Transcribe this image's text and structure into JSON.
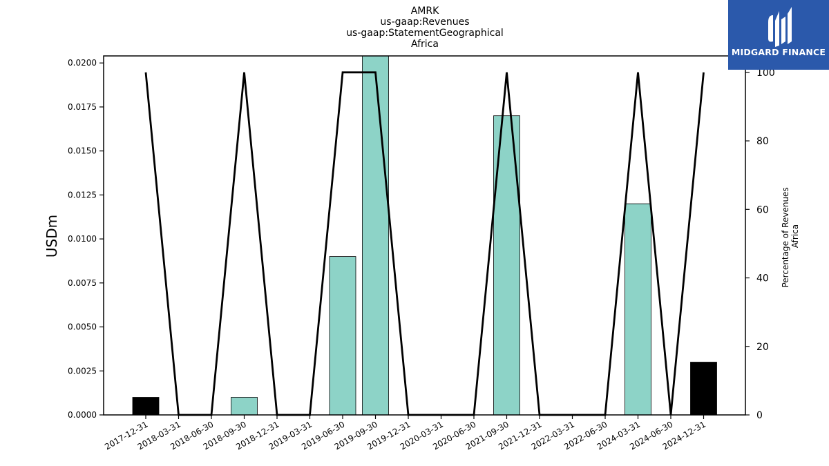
{
  "logo": {
    "text": "MIDGARD FINANCE",
    "icon": "midgard-logo-icon",
    "bg_color": "#2b59ab"
  },
  "chart_data": {
    "type": "bar",
    "title_lines": [
      "AMRK",
      "us-gaap:Revenues",
      "us-gaap:StatementGeographical",
      "Africa"
    ],
    "categories": [
      "2017-12-31",
      "2018-03-31",
      "2018-06-30",
      "2018-09-30",
      "2018-12-31",
      "2019-03-31",
      "2019-06-30",
      "2019-09-30",
      "2019-12-31",
      "2020-03-31",
      "2020-06-30",
      "2021-09-30",
      "2021-12-31",
      "2022-03-31",
      "2022-06-30",
      "2024-03-31",
      "2024-06-30",
      "2024-12-31"
    ],
    "values": [
      0.001,
      0,
      0,
      0.001,
      0,
      0,
      0.009,
      0.0205,
      0,
      0,
      0,
      0.017,
      0,
      0,
      0,
      0.012,
      0,
      0.003
    ],
    "bar_colors": [
      "#000000",
      "#8dd3c7",
      "#8dd3c7",
      "#8dd3c7",
      "#8dd3c7",
      "#8dd3c7",
      "#8dd3c7",
      "#8dd3c7",
      "#8dd3c7",
      "#8dd3c7",
      "#8dd3c7",
      "#8dd3c7",
      "#8dd3c7",
      "#8dd3c7",
      "#8dd3c7",
      "#8dd3c7",
      "#8dd3c7",
      "#000000"
    ],
    "ylabel": "USDm",
    "ylim": [
      0,
      0.0204
    ],
    "yticks": [
      "0.0000",
      "0.0025",
      "0.0050",
      "0.0075",
      "0.0100",
      "0.0125",
      "0.0150",
      "0.0175",
      "0.0200"
    ],
    "secondary_series": {
      "type": "line",
      "values": [
        100,
        0,
        0,
        100,
        0,
        0,
        100,
        100,
        0,
        0,
        0,
        100,
        0,
        0,
        0,
        100,
        0,
        100
      ],
      "color": "#000000"
    },
    "y2label_lines": [
      "Percentage of Revenues",
      "Africa"
    ],
    "y2lim": [
      0,
      104.8
    ],
    "y2ticks": [
      "0",
      "20",
      "40",
      "60",
      "80",
      "100"
    ],
    "grid": false,
    "legend": "none"
  }
}
